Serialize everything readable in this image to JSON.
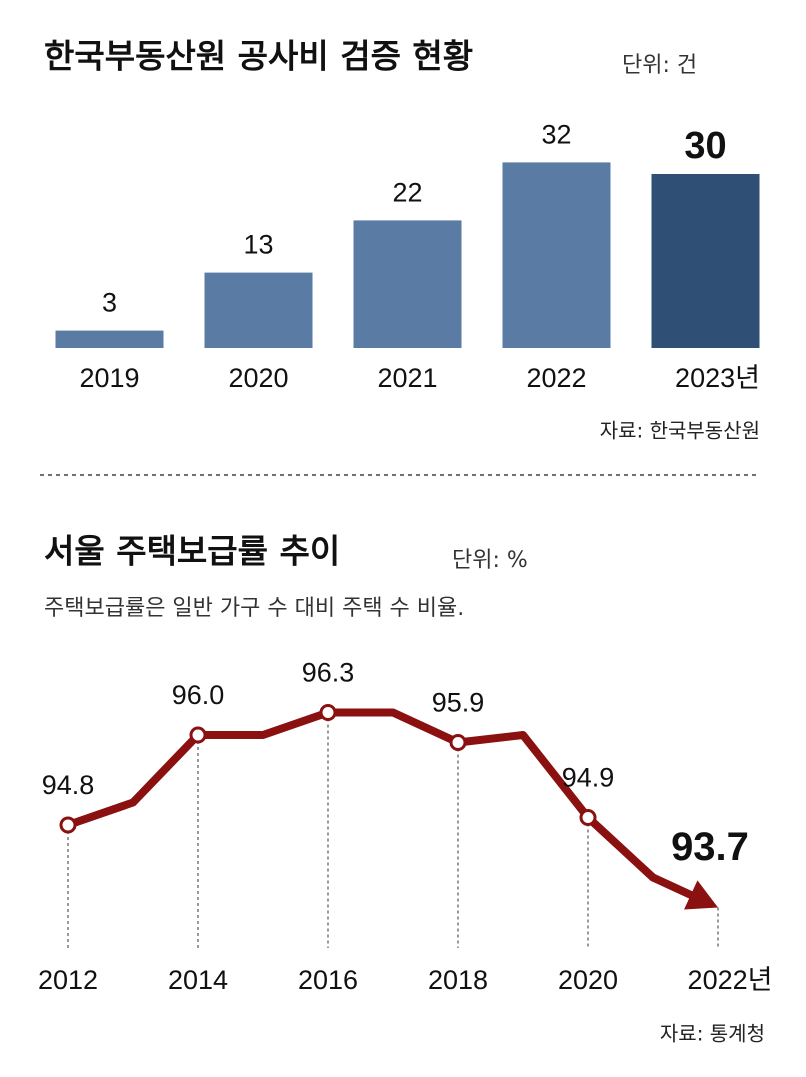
{
  "chart_data": [
    {
      "type": "bar",
      "title": "한국부동산원 공사비 검증 현황",
      "unit": "단위: 건",
      "categories": [
        "2019",
        "2020",
        "2021",
        "2022",
        "2023년"
      ],
      "values": [
        3,
        13,
        22,
        32,
        30
      ],
      "colors": [
        "#5a7ba3",
        "#5a7ba3",
        "#5a7ba3",
        "#5a7ba3",
        "#2f4f74"
      ],
      "ylim": [
        0,
        35
      ],
      "source": "자료: 한국부동산원"
    },
    {
      "type": "line",
      "title": "서울 주택보급률 추이",
      "unit": "단위: %",
      "subtitle": "주택보급률은 일반 가구 수 대비 주택 수 비율.",
      "x": [
        2012,
        2013,
        2014,
        2015,
        2016,
        2017,
        2018,
        2019,
        2020,
        2021,
        2022
      ],
      "values": [
        94.8,
        95.1,
        96.0,
        96.0,
        96.3,
        96.3,
        95.9,
        96.0,
        94.9,
        94.1,
        93.7
      ],
      "value_labels": [
        "94.8",
        null,
        "96.0",
        null,
        "96.3",
        null,
        "95.9",
        null,
        "94.9",
        null,
        "93.7"
      ],
      "color": "#8b1010",
      "xlim": [
        2012,
        2022
      ],
      "ylim": [
        93,
        97
      ],
      "xticks": [
        2012,
        2014,
        2016,
        2018,
        2020,
        {
          "value": 2022,
          "label": "2022년"
        }
      ],
      "source": "자료: 통계청"
    }
  ]
}
